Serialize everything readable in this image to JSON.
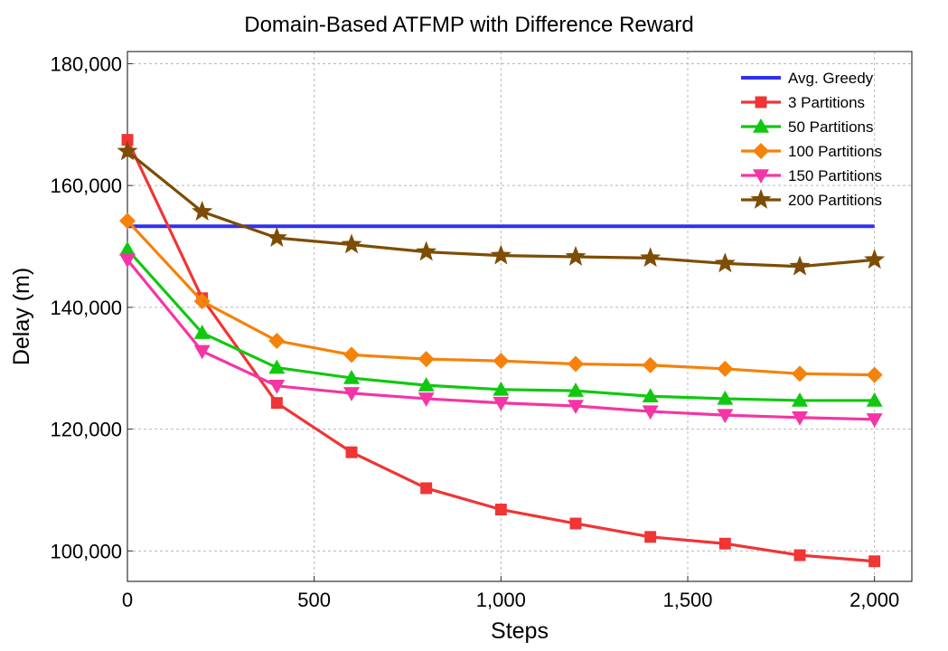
{
  "chart_data": {
    "type": "line",
    "title": "Domain-Based ATFMP with Difference Reward",
    "xlabel": "Steps",
    "ylabel": "Delay (m)",
    "xlim": [
      0,
      2100
    ],
    "ylim": [
      95000,
      182000
    ],
    "xticks": [
      0,
      500,
      1000,
      1500,
      2000
    ],
    "xtick_labels": [
      "0",
      "500",
      "1,000",
      "1,500",
      "2,000"
    ],
    "yticks": [
      100000,
      120000,
      140000,
      160000,
      180000
    ],
    "ytick_labels": [
      "100,000",
      "120,000",
      "140,000",
      "160,000",
      "180,000"
    ],
    "grid": true,
    "legend_position": "top-right",
    "x": [
      0,
      200,
      400,
      600,
      800,
      1000,
      1200,
      1400,
      1600,
      1800,
      2000
    ],
    "series": [
      {
        "name": "Avg. Greedy",
        "color": "#3030ee",
        "marker": "none",
        "x": [
          0,
          2000
        ],
        "values": [
          153300,
          153300
        ]
      },
      {
        "name": "3 Partitions",
        "color": "#f03535",
        "marker": "square",
        "values": [
          167500,
          141500,
          124300,
          116200,
          110300,
          106800,
          104500,
          102300,
          101200,
          99300,
          98300
        ]
      },
      {
        "name": "50 Partitions",
        "color": "#10c810",
        "marker": "triangle-up",
        "values": [
          149500,
          135800,
          130100,
          128400,
          127200,
          126500,
          126300,
          125400,
          125000,
          124700,
          124700
        ]
      },
      {
        "name": "100 Partitions",
        "color": "#f5820a",
        "marker": "diamond",
        "values": [
          154200,
          141000,
          134500,
          132200,
          131500,
          131200,
          130700,
          130500,
          129900,
          129100,
          128900
        ]
      },
      {
        "name": "150 Partitions",
        "color": "#f535a5",
        "marker": "triangle-down",
        "values": [
          147800,
          132800,
          127100,
          125900,
          125000,
          124300,
          123800,
          122900,
          122300,
          121900,
          121600
        ]
      },
      {
        "name": "200 Partitions",
        "color": "#7d4d05",
        "marker": "star",
        "values": [
          165600,
          155700,
          151400,
          150300,
          149100,
          148500,
          148300,
          148100,
          147200,
          146700,
          147800
        ]
      }
    ]
  }
}
